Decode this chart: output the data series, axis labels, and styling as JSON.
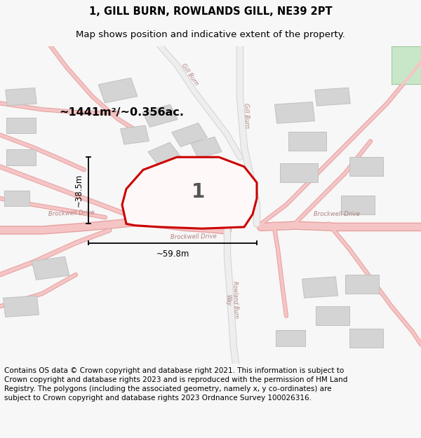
{
  "title_line1": "1, GILL BURN, ROWLANDS GILL, NE39 2PT",
  "title_line2": "Map shows position and indicative extent of the property.",
  "area_label": "~1441m²/~0.356ac.",
  "plot_number": "1",
  "dim_vertical": "~38.5m",
  "dim_horizontal": "~59.8m",
  "footer_text": "Contains OS data © Crown copyright and database right 2021. This information is subject to Crown copyright and database rights 2023 and is reproduced with the permission of HM Land Registry. The polygons (including the associated geometry, namely x, y co-ordinates) are subject to Crown copyright and database rights 2023 Ordnance Survey 100026316.",
  "bg_color": "#f7f7f7",
  "map_bg": "#ffffff",
  "road_color": "#f5c5c5",
  "road_border_color": "#e8a0a0",
  "plot_outline_color": "#cc0000",
  "building_color": "#d4d4d4",
  "building_outline": "#c0c0c0",
  "green_color": "#c8e6c8",
  "road_label_color": "#b08080",
  "text_color": "#000000",
  "title_fontsize": 10.5,
  "subtitle_fontsize": 9.5,
  "footer_fontsize": 7.5
}
